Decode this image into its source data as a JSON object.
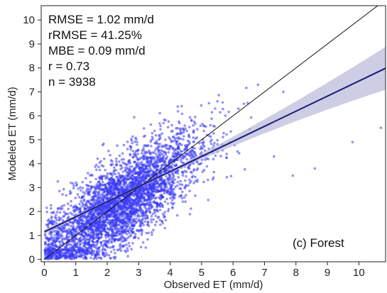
{
  "chart_data": {
    "type": "scatter",
    "xlabel": "Observed ET (mm/d)",
    "ylabel": "Modeled ET (mm/d)",
    "xlim": [
      -0.1,
      10.85
    ],
    "ylim": [
      -0.1,
      10.6
    ],
    "x_ticks": [
      "0",
      "1",
      "2",
      "3",
      "4",
      "5",
      "6",
      "7",
      "8",
      "9",
      "10"
    ],
    "y_ticks": [
      "0",
      "1",
      "2",
      "3",
      "4",
      "5",
      "6",
      "7",
      "8",
      "9",
      "10"
    ],
    "grid": false,
    "stats": [
      "RMSE = 1.02 mm/d",
      "rRMSE = 41.25%",
      "MBE = 0.09 mm/d",
      "r = 0.73",
      "n = 3938"
    ],
    "panel_label": "(c) Forest",
    "one_to_one_line": {
      "from": [
        0,
        0
      ],
      "to": [
        10.85,
        10.85
      ]
    },
    "regression_line": {
      "intercept": 1.15,
      "slope": 0.63,
      "x_range": [
        0,
        10.85
      ]
    },
    "point_cloud": {
      "n": 3938,
      "point_color": "#3b3bf5",
      "point_alpha": 0.55
    },
    "outlier_points": [
      {
        "x": 9.8,
        "y": 4.9
      },
      {
        "x": 10.7,
        "y": 5.5
      },
      {
        "x": 8.6,
        "y": 3.8
      },
      {
        "x": 7.9,
        "y": 3.5
      },
      {
        "x": 7.6,
        "y": 7.0
      },
      {
        "x": 7.3,
        "y": 4.3
      }
    ],
    "colors": {
      "regression": "#1a1a80",
      "confidence_band": "#b8b8d8",
      "one_to_one": "#111111"
    }
  }
}
